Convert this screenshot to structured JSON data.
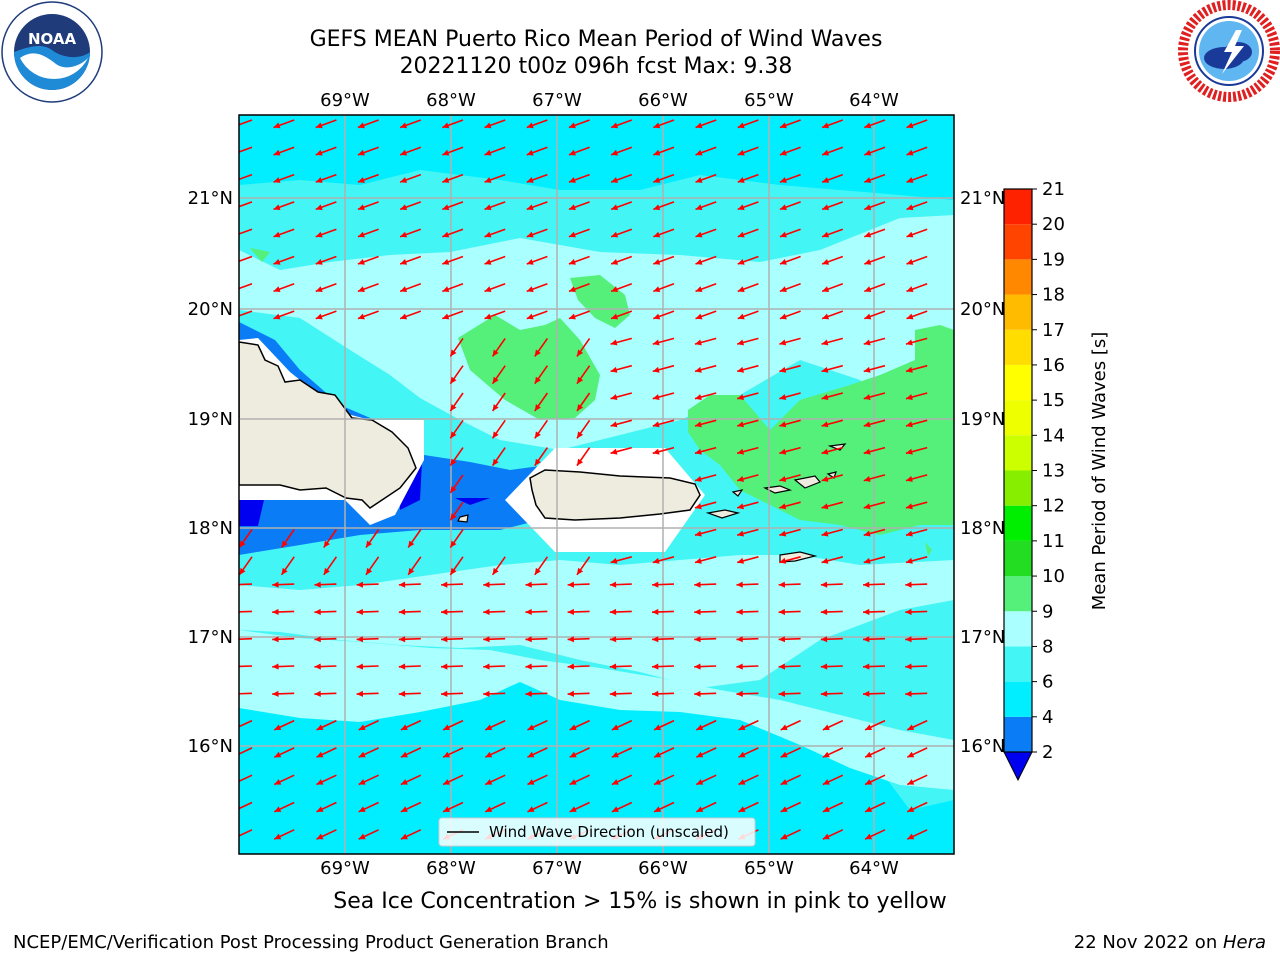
{
  "header": {
    "title_line1": "GEFS MEAN Puerto Rico Mean Period of Wind Waves",
    "title_line2": "20221120 t00z 096h fcst   Max: 9.38"
  },
  "logos": {
    "left": {
      "name": "noaa-logo",
      "text": "NOAA"
    },
    "right": {
      "name": "nws-logo"
    }
  },
  "map": {
    "lon_ticks": [
      "69°W",
      "68°W",
      "67°W",
      "66°W",
      "65°W",
      "64°W"
    ],
    "lat_ticks": [
      "21°N",
      "20°N",
      "19°N",
      "18°N",
      "17°N",
      "16°N"
    ],
    "legend_label": "Wind Wave Direction (unscaled)",
    "arrow_color": "#ff0000",
    "land_color": "#eeecdf"
  },
  "colorbar": {
    "label": "Mean Period of Wind Waves [s]",
    "ticks": [
      "2",
      "4",
      "6",
      "8",
      "9",
      "10",
      "11",
      "12",
      "13",
      "14",
      "15",
      "16",
      "17",
      "18",
      "19",
      "20",
      "21"
    ],
    "colors": [
      "#0000f0",
      "#0a7cf5",
      "#00eeff",
      "#44f5f5",
      "#aaffff",
      "#55f07a",
      "#22dd22",
      "#00ee00",
      "#88ee00",
      "#ccff00",
      "#eeff00",
      "#ffff00",
      "#ffdd00",
      "#ffbb00",
      "#ff8800",
      "#ff4400",
      "#ff2200",
      "#ff0000"
    ]
  },
  "subtitle": "Sea Ice Concentration > 15% is shown in pink to yellow",
  "footer": {
    "left": "NCEP/EMC/Verification Post Processing Product Generation Branch",
    "right_date": "22 Nov 2022 on ",
    "right_system": "Hera"
  }
}
